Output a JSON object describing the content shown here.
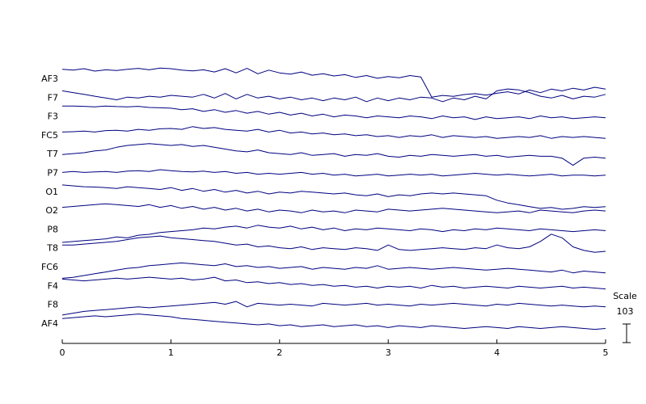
{
  "chart_data": {
    "type": "line",
    "color": "#000080",
    "xlim": [
      0,
      5
    ],
    "xticks": [
      0,
      1,
      2,
      3,
      4,
      5
    ],
    "scale_label": "Scale",
    "scale_value": 103,
    "x": [
      0,
      0.1,
      0.2,
      0.3,
      0.4,
      0.5,
      0.6,
      0.7,
      0.8,
      0.9,
      1,
      1.1,
      1.2,
      1.3,
      1.4,
      1.5,
      1.6,
      1.7,
      1.8,
      1.9,
      2,
      2.1,
      2.2,
      2.3,
      2.4,
      2.5,
      2.6,
      2.7,
      2.8,
      2.9,
      3,
      3.1,
      3.2,
      3.3,
      3.4,
      3.5,
      3.6,
      3.7,
      3.8,
      3.9,
      4,
      4.1,
      4.2,
      4.3,
      4.4,
      4.5,
      4.6,
      4.7,
      4.8,
      4.9,
      5
    ],
    "series": [
      {
        "name": "AF3",
        "values": [
          55,
          50,
          58,
          45,
          52,
          48,
          55,
          60,
          52,
          62,
          58,
          50,
          46,
          52,
          40,
          58,
          35,
          60,
          30,
          50,
          35,
          28,
          40,
          22,
          30,
          18,
          25,
          10,
          20,
          5,
          15,
          8,
          20,
          12,
          -100,
          -90,
          -95,
          -85,
          -80,
          -88,
          -78,
          -70,
          -82,
          -60,
          -75,
          -55,
          -65,
          -50,
          -60,
          -45,
          -55
        ]
      },
      {
        "name": "F7",
        "values": [
          40,
          30,
          20,
          10,
          0,
          -10,
          5,
          0,
          10,
          5,
          15,
          10,
          5,
          20,
          0,
          25,
          -5,
          20,
          0,
          10,
          -5,
          5,
          -10,
          0,
          -15,
          0,
          -10,
          5,
          -20,
          0,
          -15,
          0,
          -10,
          5,
          0,
          -20,
          0,
          -10,
          10,
          -5,
          40,
          50,
          45,
          30,
          10,
          0,
          15,
          -5,
          10,
          5,
          20
        ]
      },
      {
        "name": "F3",
        "values": [
          60,
          60,
          58,
          55,
          60,
          57,
          55,
          58,
          52,
          50,
          48,
          40,
          45,
          30,
          40,
          25,
          35,
          20,
          30,
          15,
          25,
          10,
          20,
          5,
          15,
          0,
          10,
          5,
          -5,
          5,
          0,
          -5,
          5,
          0,
          -10,
          5,
          -5,
          0,
          -15,
          0,
          -10,
          -5,
          0,
          -10,
          5,
          -5,
          0,
          -10,
          -5,
          0,
          -5
        ]
      },
      {
        "name": "FC5",
        "values": [
          20,
          22,
          25,
          20,
          28,
          30,
          25,
          35,
          30,
          38,
          40,
          35,
          50,
          40,
          45,
          35,
          30,
          25,
          35,
          20,
          30,
          15,
          20,
          10,
          15,
          5,
          10,
          0,
          5,
          -5,
          0,
          -10,
          0,
          -5,
          5,
          -10,
          0,
          -5,
          -10,
          -5,
          -15,
          -10,
          -5,
          -10,
          0,
          -15,
          -5,
          -10,
          -5,
          -10,
          -15
        ]
      },
      {
        "name": "T7",
        "values": [
          0,
          5,
          10,
          20,
          25,
          40,
          50,
          55,
          60,
          55,
          50,
          55,
          45,
          50,
          40,
          30,
          20,
          15,
          25,
          10,
          5,
          0,
          10,
          -5,
          0,
          5,
          -10,
          0,
          -5,
          5,
          -10,
          -15,
          -5,
          -10,
          0,
          -5,
          -10,
          -5,
          0,
          -10,
          -5,
          -15,
          -10,
          -5,
          -10,
          -10,
          -20,
          -60,
          -20,
          -15,
          -20
        ]
      },
      {
        "name": "P7",
        "values": [
          5,
          10,
          5,
          8,
          10,
          5,
          12,
          15,
          10,
          20,
          15,
          10,
          8,
          12,
          5,
          10,
          0,
          5,
          -5,
          0,
          -5,
          0,
          5,
          -5,
          0,
          -10,
          -5,
          -15,
          -10,
          -5,
          -15,
          -10,
          -5,
          -10,
          -5,
          -15,
          -10,
          -5,
          0,
          -5,
          -10,
          -5,
          -10,
          -15,
          -10,
          -5,
          -15,
          -10,
          -10,
          -15,
          -10
        ]
      },
      {
        "name": "O1",
        "values": [
          40,
          35,
          30,
          28,
          25,
          20,
          30,
          25,
          20,
          15,
          25,
          10,
          20,
          5,
          15,
          0,
          10,
          -5,
          5,
          -10,
          0,
          -5,
          5,
          0,
          -5,
          -10,
          -5,
          -15,
          -20,
          -10,
          -25,
          -15,
          -20,
          -10,
          -5,
          -10,
          -5,
          -10,
          -15,
          -20,
          -45,
          -60,
          -70,
          -80,
          -90,
          -85,
          -95,
          -90,
          -80,
          -85,
          -80
        ]
      },
      {
        "name": "O2",
        "values": [
          20,
          25,
          30,
          35,
          40,
          35,
          30,
          25,
          35,
          20,
          30,
          15,
          25,
          10,
          20,
          5,
          15,
          0,
          10,
          -5,
          5,
          0,
          -10,
          5,
          -5,
          0,
          -10,
          5,
          0,
          -5,
          10,
          5,
          0,
          5,
          10,
          15,
          10,
          5,
          0,
          -5,
          -10,
          -5,
          0,
          -10,
          5,
          0,
          -5,
          -10,
          0,
          5,
          0
        ]
      },
      {
        "name": "P8",
        "values": [
          -70,
          -65,
          -60,
          -55,
          -50,
          -40,
          -45,
          -30,
          -25,
          -15,
          -10,
          -5,
          0,
          10,
          5,
          15,
          20,
          10,
          25,
          15,
          10,
          20,
          5,
          15,
          0,
          10,
          -5,
          5,
          0,
          10,
          5,
          0,
          -5,
          5,
          0,
          -10,
          0,
          -5,
          5,
          0,
          10,
          5,
          0,
          -5,
          5,
          0,
          -5,
          -10,
          -5,
          0,
          -5
        ]
      },
      {
        "name": "T8",
        "values": [
          20,
          20,
          25,
          30,
          35,
          40,
          50,
          60,
          65,
          70,
          60,
          55,
          50,
          45,
          40,
          30,
          20,
          25,
          10,
          15,
          5,
          0,
          10,
          -5,
          5,
          0,
          -5,
          5,
          0,
          -10,
          20,
          -5,
          -10,
          -5,
          0,
          5,
          0,
          -5,
          5,
          0,
          20,
          5,
          0,
          10,
          40,
          80,
          60,
          10,
          -10,
          -20,
          -15
        ]
      },
      {
        "name": "FC6",
        "values": [
          -60,
          -55,
          -45,
          -35,
          -25,
          -15,
          -5,
          0,
          10,
          15,
          20,
          25,
          20,
          15,
          10,
          20,
          5,
          10,
          0,
          5,
          -5,
          0,
          5,
          -10,
          0,
          -5,
          -10,
          0,
          -5,
          10,
          -10,
          -5,
          0,
          -5,
          -10,
          -5,
          0,
          -5,
          -10,
          -15,
          -10,
          -5,
          -10,
          -15,
          -20,
          -25,
          -15,
          -30,
          -20,
          -25,
          -30
        ]
      },
      {
        "name": "F4",
        "values": [
          40,
          35,
          30,
          35,
          40,
          45,
          40,
          45,
          50,
          45,
          40,
          45,
          35,
          40,
          50,
          30,
          35,
          20,
          25,
          15,
          20,
          10,
          15,
          5,
          10,
          0,
          5,
          -5,
          0,
          -10,
          0,
          -5,
          0,
          -10,
          5,
          -5,
          0,
          -10,
          -5,
          0,
          -5,
          -10,
          0,
          -5,
          -10,
          -5,
          0,
          -10,
          -5,
          -10,
          -15
        ]
      },
      {
        "name": "F8",
        "values": [
          -55,
          -45,
          -35,
          -30,
          -25,
          -20,
          -15,
          -10,
          -15,
          -10,
          -5,
          0,
          5,
          10,
          15,
          5,
          20,
          -10,
          10,
          5,
          0,
          5,
          0,
          -5,
          10,
          5,
          0,
          5,
          10,
          0,
          5,
          0,
          -5,
          5,
          0,
          5,
          10,
          5,
          0,
          -5,
          5,
          0,
          10,
          5,
          0,
          -5,
          0,
          -5,
          -10,
          -5,
          -10
        ]
      },
      {
        "name": "AF4",
        "values": [
          30,
          35,
          40,
          45,
          40,
          45,
          50,
          55,
          50,
          45,
          40,
          30,
          25,
          20,
          15,
          10,
          5,
          0,
          -5,
          0,
          -10,
          -5,
          -15,
          -10,
          -5,
          -15,
          -10,
          -5,
          -15,
          -10,
          -20,
          -10,
          -15,
          -20,
          -10,
          -15,
          -20,
          -25,
          -20,
          -15,
          -20,
          -25,
          -15,
          -20,
          -25,
          -20,
          -15,
          -20,
          -25,
          -30,
          -25
        ]
      }
    ]
  }
}
